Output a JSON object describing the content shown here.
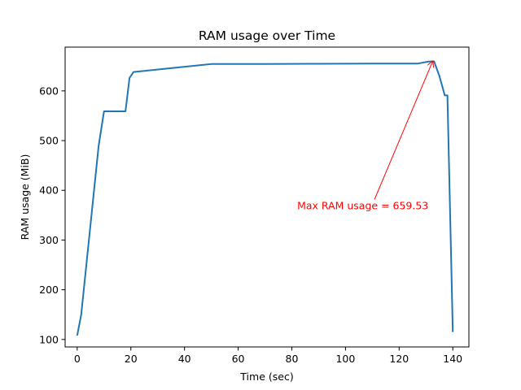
{
  "chart_data": {
    "type": "line",
    "title": "RAM usage over Time",
    "xlabel": "Time (sec)",
    "ylabel": "RAM usage (MiB)",
    "xlim": [
      -4.5,
      146
    ],
    "ylim": [
      85,
      688
    ],
    "x_ticks": [
      0,
      20,
      40,
      60,
      80,
      100,
      120,
      140
    ],
    "y_ticks": [
      100,
      200,
      300,
      400,
      500,
      600
    ],
    "grid": false,
    "line_color": "#1f77b4",
    "annotation_color": "#ff0000",
    "series": [
      {
        "x": [
          0,
          1.5,
          8,
          10,
          18,
          19.5,
          21,
          50,
          70,
          90,
          110,
          127,
          131,
          133,
          135,
          137,
          138,
          140
        ],
        "y": [
          108,
          150,
          490,
          559,
          559,
          626,
          638,
          654,
          654,
          654.5,
          655,
          655,
          659,
          659.5,
          630,
          591,
          591,
          115
        ]
      }
    ],
    "annotation": {
      "text": "Max RAM usage = 659.53",
      "point": [
        132.5,
        659.53
      ],
      "text_anchor": [
        82,
        362
      ]
    }
  }
}
